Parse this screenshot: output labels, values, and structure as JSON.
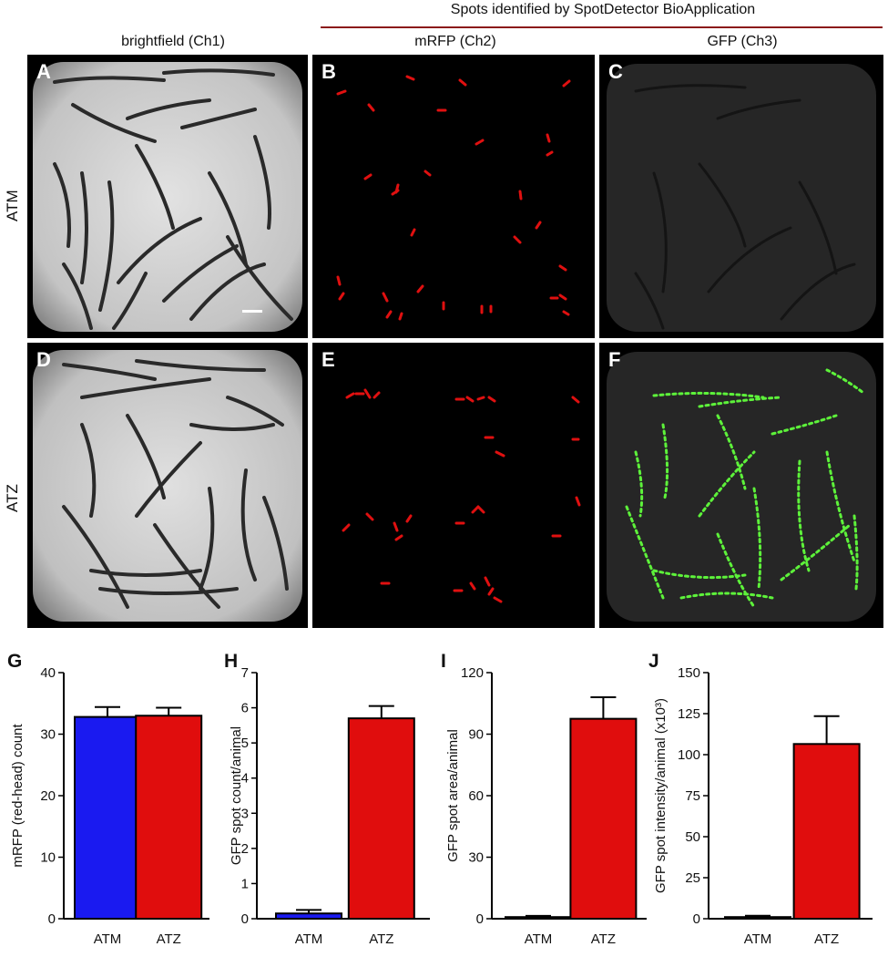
{
  "header": {
    "title": "Spots identified by SpotDetector BioApplication",
    "col_labels": [
      "brightfield (Ch1)",
      "mRFP (Ch2)",
      "GFP (Ch3)"
    ],
    "row_labels": [
      "ATM",
      "ATZ"
    ]
  },
  "panels": [
    {
      "letter": "A",
      "channel": "brightfield",
      "condition": "ATM"
    },
    {
      "letter": "B",
      "channel": "mRFP",
      "condition": "ATM"
    },
    {
      "letter": "C",
      "channel": "GFP",
      "condition": "ATM"
    },
    {
      "letter": "D",
      "channel": "brightfield",
      "condition": "ATZ"
    },
    {
      "letter": "E",
      "channel": "mRFP",
      "condition": "ATZ"
    },
    {
      "letter": "F",
      "channel": "GFP",
      "condition": "ATZ"
    }
  ],
  "colors": {
    "atm_bar": "#1a1af0",
    "atz_bar": "#e00d0d",
    "rfp_spot": "#e01010",
    "gfp_spot": "#5df23a",
    "rule": "#8b1a1a"
  },
  "chart_data": [
    {
      "letter": "G",
      "type": "bar",
      "categories": [
        "ATM",
        "ATZ"
      ],
      "values": [
        32.8,
        33.0
      ],
      "errors": [
        1.6,
        1.3
      ],
      "ylabel": "mRFP (red-head) count",
      "ylim": [
        0,
        40
      ],
      "yticks": [
        "0",
        "10",
        "20",
        "30",
        "40"
      ],
      "colors": [
        "#1a1af0",
        "#e00d0d"
      ]
    },
    {
      "letter": "H",
      "type": "bar",
      "categories": [
        "ATM",
        "ATZ"
      ],
      "values": [
        0.15,
        5.7
      ],
      "errors": [
        0.1,
        0.35
      ],
      "ylabel": "GFP spot count/animal",
      "ylim": [
        0,
        7
      ],
      "yticks": [
        "0",
        "1",
        "2",
        "3",
        "4",
        "5",
        "6",
        "7"
      ],
      "colors": [
        "#1a1af0",
        "#e00d0d"
      ]
    },
    {
      "letter": "I",
      "type": "bar",
      "categories": [
        "ATM",
        "ATZ"
      ],
      "values": [
        0.8,
        97.5
      ],
      "errors": [
        0.6,
        10.5
      ],
      "ylabel": "GFP spot area/animal",
      "ylim": [
        0,
        120
      ],
      "yticks": [
        "0",
        "30",
        "60",
        "90",
        "120"
      ],
      "colors": [
        "#1a1af0",
        "#e00d0d"
      ]
    },
    {
      "letter": "J",
      "type": "bar",
      "categories": [
        "ATM",
        "ATZ"
      ],
      "values": [
        1.0,
        106.5
      ],
      "errors": [
        0.8,
        17
      ],
      "ylabel": "GFP spot intensity/animal (x10³)",
      "ylim": [
        0,
        150
      ],
      "yticks": [
        "0",
        "25",
        "50",
        "75",
        "100",
        "125",
        "150"
      ],
      "colors": [
        "#1a1af0",
        "#e00d0d"
      ]
    }
  ]
}
